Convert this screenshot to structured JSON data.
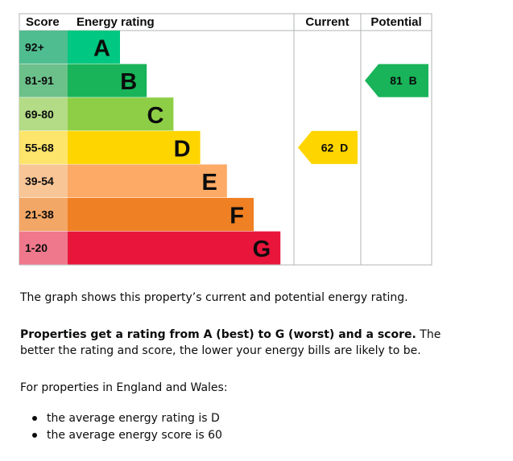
{
  "chart_data": {
    "type": "bar",
    "headers": {
      "score": "Score",
      "rating": "Energy rating",
      "current": "Current",
      "potential": "Potential"
    },
    "bands": [
      {
        "letter": "A",
        "score_range": "92+",
        "color": "#00c781",
        "score_bg": "#4fbd8f"
      },
      {
        "letter": "B",
        "score_range": "81-91",
        "color": "#19b459",
        "score_bg": "#6cc08a"
      },
      {
        "letter": "C",
        "score_range": "69-80",
        "color": "#8dce46",
        "score_bg": "#b4db86"
      },
      {
        "letter": "D",
        "score_range": "55-68",
        "color": "#ffd500",
        "score_bg": "#fde56b"
      },
      {
        "letter": "E",
        "score_range": "39-54",
        "color": "#fcaa65",
        "score_bg": "#f8c596"
      },
      {
        "letter": "F",
        "score_range": "21-38",
        "color": "#ef8023",
        "score_bg": "#f3a766"
      },
      {
        "letter": "G",
        "score_range": "1-20",
        "color": "#e9153b",
        "score_bg": "#f0788c"
      }
    ],
    "current": {
      "score": 62,
      "band": "D",
      "label": "62  D",
      "color": "#ffd500"
    },
    "potential": {
      "score": 81,
      "band": "B",
      "label": "81  B",
      "color": "#19b459"
    }
  },
  "text": {
    "intro": "The graph shows this property’s current and potential energy rating.",
    "rating_bold": "Properties get a rating from A (best) to G (worst) and a score.",
    "rating_rest": " The better the rating and score, the lower your energy bills are likely to be.",
    "region": "For properties in England and Wales:",
    "bullets": [
      "the average energy rating is D",
      "the average energy score is 60"
    ]
  }
}
